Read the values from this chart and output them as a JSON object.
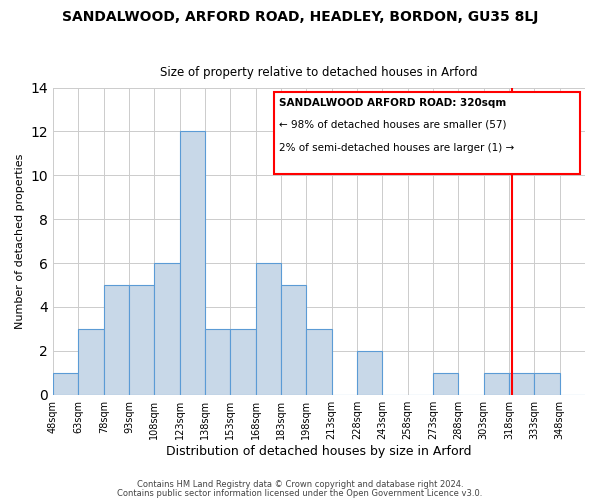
{
  "title": "SANDALWOOD, ARFORD ROAD, HEADLEY, BORDON, GU35 8LJ",
  "subtitle": "Size of property relative to detached houses in Arford",
  "xlabel": "Distribution of detached houses by size in Arford",
  "ylabel": "Number of detached properties",
  "footnote1": "Contains HM Land Registry data © Crown copyright and database right 2024.",
  "footnote2": "Contains public sector information licensed under the Open Government Licence v3.0.",
  "bin_labels": [
    "48sqm",
    "63sqm",
    "78sqm",
    "93sqm",
    "108sqm",
    "123sqm",
    "138sqm",
    "153sqm",
    "168sqm",
    "183sqm",
    "198sqm",
    "213sqm",
    "228sqm",
    "243sqm",
    "258sqm",
    "273sqm",
    "288sqm",
    "303sqm",
    "318sqm",
    "333sqm",
    "348sqm"
  ],
  "bin_edges": [
    48,
    63,
    78,
    93,
    108,
    123,
    138,
    153,
    168,
    183,
    198,
    213,
    228,
    243,
    258,
    273,
    288,
    303,
    318,
    333,
    348,
    363
  ],
  "counts": [
    1,
    3,
    5,
    5,
    6,
    12,
    3,
    3,
    6,
    5,
    3,
    0,
    2,
    0,
    0,
    1,
    0,
    1,
    1,
    1,
    0
  ],
  "bar_color": "#c8d8e8",
  "bar_edge_color": "#5b9bd5",
  "grid_color": "#cccccc",
  "ref_line_x": 320,
  "ref_line_color": "red",
  "legend_title": "SANDALWOOD ARFORD ROAD: 320sqm",
  "legend_line1": "← 98% of detached houses are smaller (57)",
  "legend_line2": "2% of semi-detached houses are larger (1) →",
  "ylim": [
    0,
    14
  ],
  "yticks": [
    0,
    2,
    4,
    6,
    8,
    10,
    12,
    14
  ]
}
